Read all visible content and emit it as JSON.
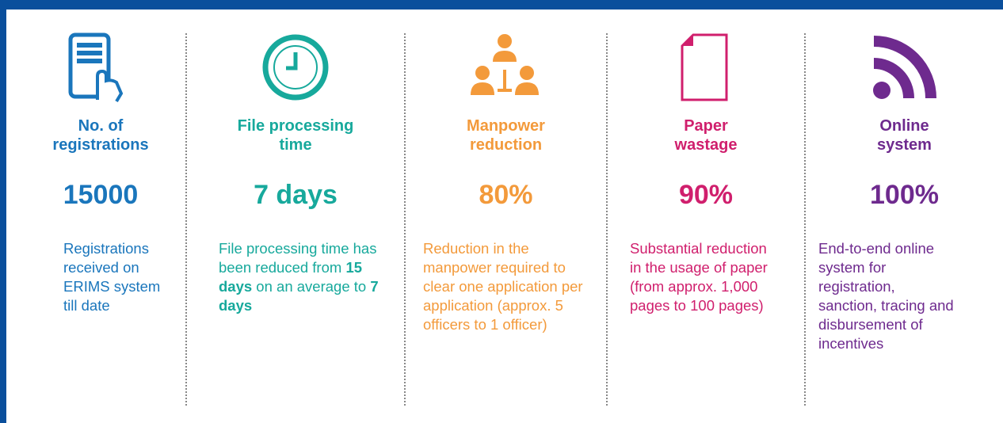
{
  "items": [
    {
      "title_lines": [
        "No. of",
        "registrations"
      ],
      "metric": "15000",
      "color": "#1a76bc",
      "description": [
        {
          "text": "Registrations received on ERIMS system till date"
        }
      ]
    },
    {
      "title_lines": [
        "File processing",
        "time"
      ],
      "metric": "7 days",
      "color": "#17a99c",
      "description": [
        {
          "text": "File processing time has been reduced from "
        },
        {
          "text": "15 days",
          "bold": true
        },
        {
          "text": " on an average to "
        },
        {
          "text": "7 days",
          "bold": true
        }
      ]
    },
    {
      "title_lines": [
        "Manpower",
        "reduction"
      ],
      "metric": "80%",
      "color": "#f39a3b",
      "description": [
        {
          "text": "Reduction in the manpower required to clear one application per application (approx. 5 officers to 1 officer)"
        }
      ]
    },
    {
      "title_lines": [
        "Paper",
        "wastage"
      ],
      "metric": "90%",
      "color": "#d01f6d",
      "description": [
        {
          "text": "Substantial reduction in the usage of paper (from approx. 1,000 pages to 100 pages)"
        }
      ]
    },
    {
      "title_lines": [
        "Online",
        "system"
      ],
      "metric": "100%",
      "color": "#6e2a8e",
      "description": [
        {
          "text": "End-to-end online system for registration, sanction, tracing and disbursement of incentives"
        }
      ]
    }
  ]
}
